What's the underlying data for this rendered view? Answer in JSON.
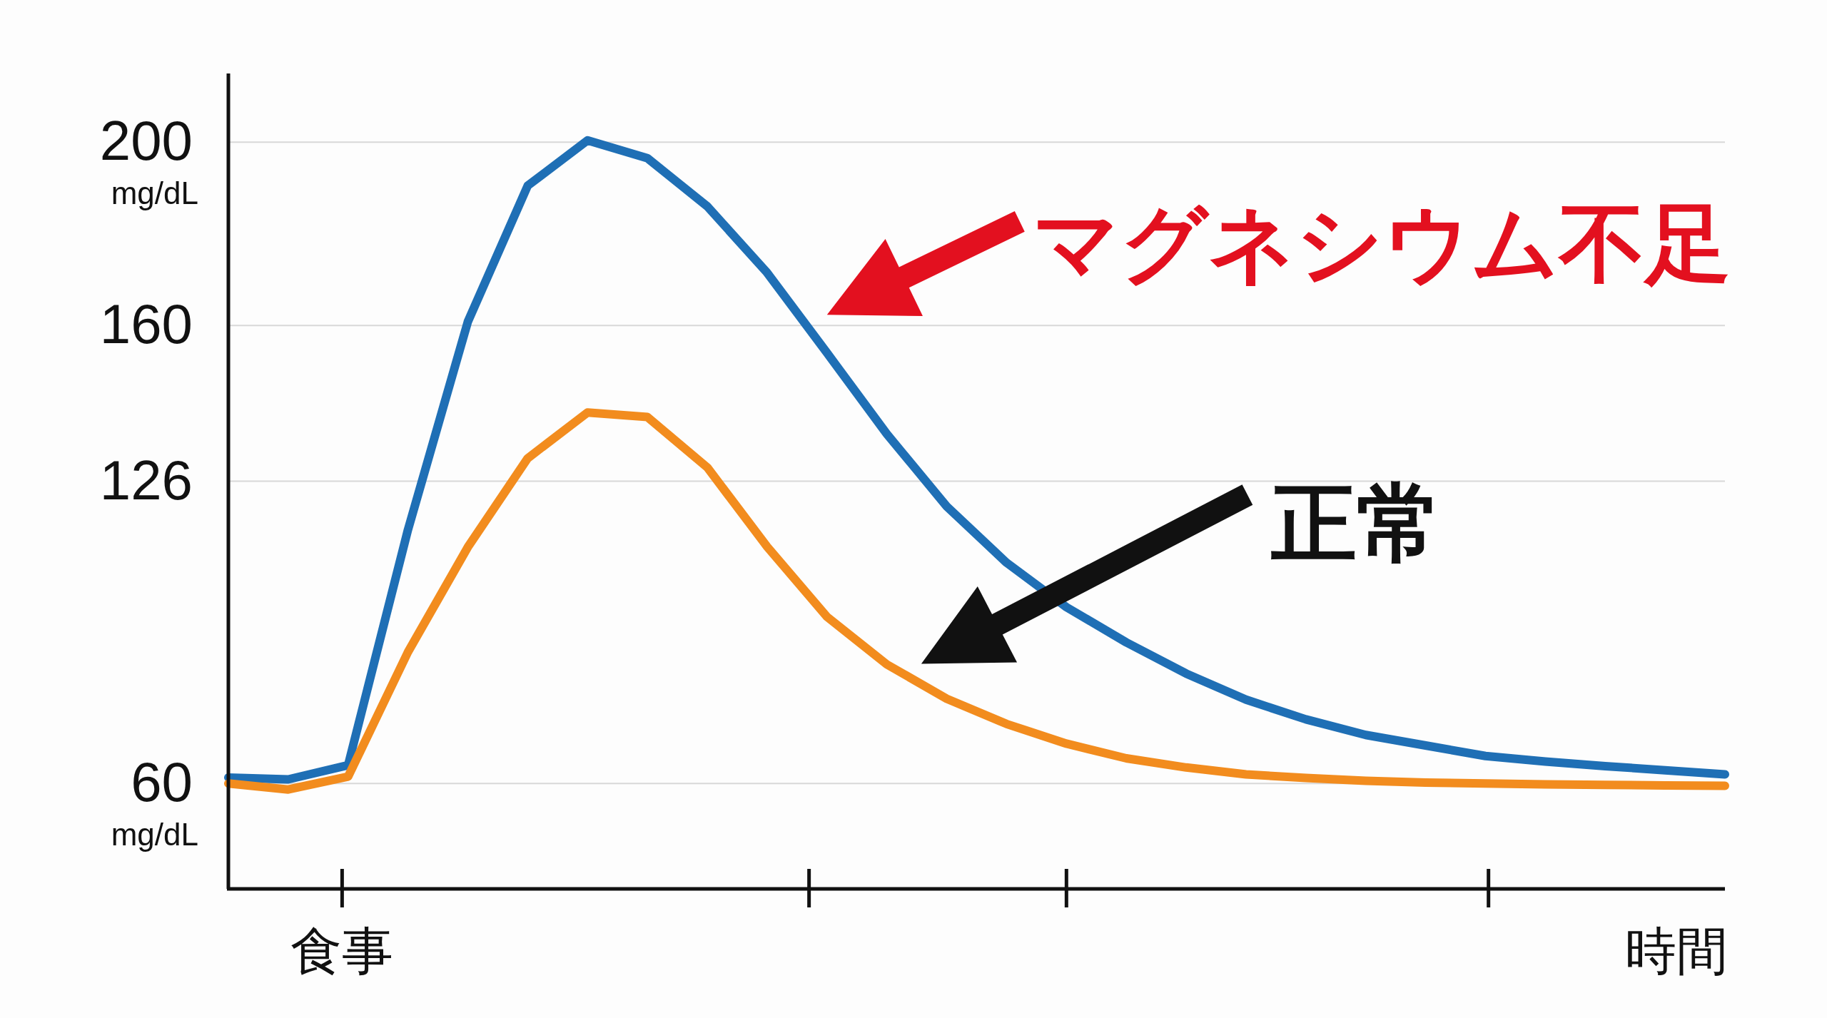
{
  "chart_data": {
    "type": "line",
    "xlabel": "時間",
    "categories": [
      null,
      null,
      null,
      null,
      null,
      null,
      null,
      null,
      null,
      null,
      null,
      null,
      null,
      null,
      null,
      null,
      null,
      null,
      null,
      null,
      null,
      null,
      null,
      null,
      null,
      null
    ],
    "ylim": [
      37,
      215
    ],
    "yticks": [
      {
        "value": 60,
        "label": "60$_{mg/dL}$"
      },
      {
        "value": 126,
        "label": "126"
      },
      {
        "value": 160,
        "label": "160"
      },
      {
        "value": 200,
        "label": "200$_{mg/dL}$"
      }
    ],
    "grid": "y",
    "marker": "none",
    "line_style": "solid",
    "annotations": [
      "マグネシウム不足",
      "正常",
      "食事"
    ],
    "series": [
      {
        "color": "#1f6fb5",
        "values": [
          61.3,
          60.9,
          64,
          115.4,
          160.8,
          190.5,
          200.4,
          196.5,
          186,
          171.5,
          154,
          136.3,
          120.5,
          108.2,
          98.5,
          90.8,
          84,
          78.3,
          74,
          70.6,
          68.3,
          66,
          64.8,
          63.8,
          62.9,
          62.0
        ]
      },
      {
        "color": "#f28c1e",
        "values": [
          60,
          58.7,
          61.5,
          88.7,
          111.6,
          131,
          141,
          140,
          129,
          111.7,
          96.4,
          86,
          78.5,
          73,
          68.7,
          65.5,
          63.5,
          62,
          61.2,
          60.6,
          60.2,
          60,
          59.8,
          59.7,
          59.6,
          59.5
        ]
      }
    ]
  }
}
